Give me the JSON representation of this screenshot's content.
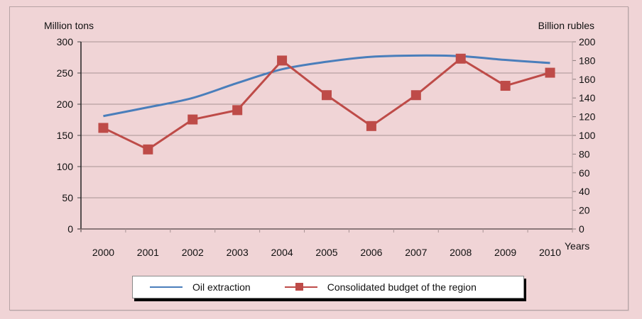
{
  "chart_data": {
    "type": "line",
    "title": "",
    "xlabel": "Years",
    "ylabel": "Million tons",
    "y2label": "Billion rubles",
    "categories": [
      "2000",
      "2001",
      "2002",
      "2003",
      "2004",
      "2005",
      "2006",
      "2007",
      "2008",
      "2009",
      "2010"
    ],
    "ylim": [
      0,
      300
    ],
    "y_ticks": [
      "0",
      "50",
      "100",
      "150",
      "200",
      "250",
      "300"
    ],
    "y2lim": [
      0,
      200
    ],
    "y2_ticks": [
      "0",
      "20",
      "40",
      "60",
      "80",
      "100",
      "120",
      "140",
      "160",
      "180",
      "200"
    ],
    "grid": true,
    "legend_position": "bottom",
    "series": [
      {
        "name": "Oil extraction",
        "axis": "left",
        "color": "#4a7ebb",
        "marker": "none",
        "smooth": true,
        "values": [
          181,
          195,
          210,
          234,
          256,
          268,
          276,
          278,
          277,
          271,
          266
        ]
      },
      {
        "name": "Consolidated budget of the region",
        "axis": "right",
        "color": "#be4b48",
        "marker": "square",
        "smooth": false,
        "values": [
          108,
          85,
          117,
          127,
          180,
          143,
          110,
          143,
          182,
          153,
          167
        ]
      }
    ]
  },
  "legend": {
    "items": [
      "Oil extraction",
      "Consolidated budget of the region"
    ]
  }
}
